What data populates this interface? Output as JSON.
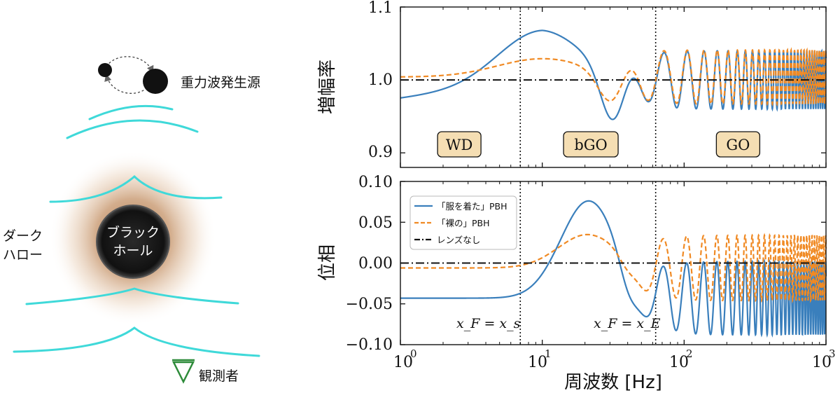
{
  "diagram": {
    "source_label": "重力波発生源",
    "halo_label_line1": "ダーク",
    "halo_label_line2": "ハロー",
    "bh_label_line1": "ブラック",
    "bh_label_line2": "ホール",
    "observer_label": "観測者",
    "colors": {
      "wave": "#3fd9d9",
      "halo": "#b07a4a",
      "bh": "#111111"
    }
  },
  "chart_data": [
    {
      "id": "amplification",
      "type": "line",
      "ylabel": "増幅率",
      "xscale": "log",
      "xlim": [
        1,
        1000
      ],
      "ylim": [
        0.88,
        1.1
      ],
      "yticks": [
        0.9,
        1.0,
        1.1
      ],
      "ytick_labels": [
        "0.9",
        "1.0",
        "1.1"
      ],
      "region_labels": [
        "WD",
        "bGO",
        "GO"
      ],
      "vlines_hz": [
        7.0,
        63.0
      ]
    },
    {
      "id": "phase",
      "type": "line",
      "ylabel": "位相",
      "xlabel": "周波数 [Hz]",
      "xscale": "log",
      "xlim": [
        1,
        1000
      ],
      "ylim": [
        -0.1,
        0.1
      ],
      "yticks": [
        -0.1,
        -0.05,
        0.0,
        0.05,
        0.1
      ],
      "ytick_labels": [
        "−0.10",
        "−0.05",
        "0.00",
        "0.05",
        "0.10"
      ],
      "xtick_base": "10",
      "xtick_exponents": [
        "0",
        "1",
        "2",
        "3"
      ],
      "legend": [
        "「服を着た」PBH",
        "「裸の」PBH",
        "レンズなし"
      ],
      "vline_label_1": "x_F = x_s",
      "vline_label_2": "x_F = x_E",
      "vlines_hz": [
        7.0,
        63.0
      ]
    }
  ],
  "series_style": {
    "dressed": {
      "color": "#3a7fbc",
      "dash": "none"
    },
    "bare": {
      "color": "#f08a24",
      "dash": "7,4"
    },
    "nolens": {
      "color": "#111111",
      "dash": "12,4,2,4"
    }
  }
}
